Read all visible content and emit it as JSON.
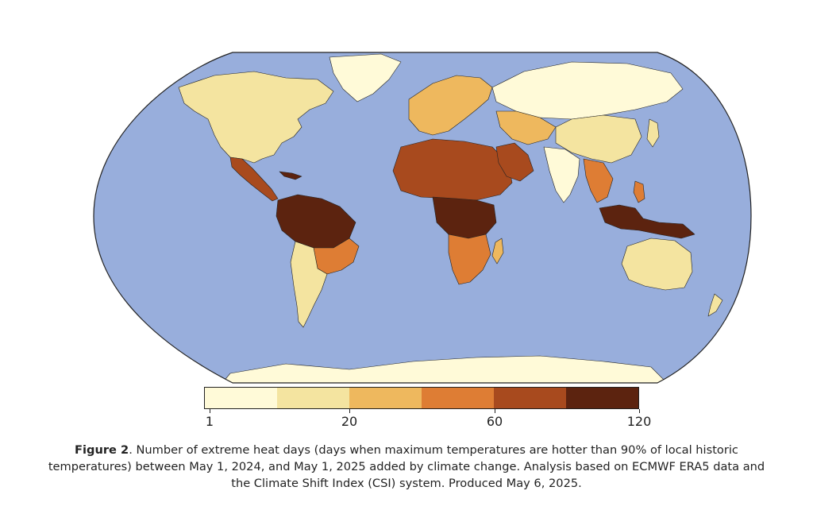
{
  "map": {
    "projection": "robinson",
    "ocean_color": "#98aedc",
    "land_base_color": "#fef7d6",
    "border_color": "#222222",
    "regions": [
      {
        "name": "north-america",
        "heat_level": 1
      },
      {
        "name": "central-america",
        "heat_level": 4
      },
      {
        "name": "amazon",
        "heat_level": 5
      },
      {
        "name": "southern-south-america",
        "heat_level": 1
      },
      {
        "name": "sahara-sahel",
        "heat_level": 4
      },
      {
        "name": "central-africa",
        "heat_level": 5
      },
      {
        "name": "southern-africa",
        "heat_level": 3
      },
      {
        "name": "europe",
        "heat_level": 2
      },
      {
        "name": "arabian-peninsula",
        "heat_level": 4
      },
      {
        "name": "russia-north-asia",
        "heat_level": 0
      },
      {
        "name": "china",
        "heat_level": 1
      },
      {
        "name": "india",
        "heat_level": 0
      },
      {
        "name": "southeast-asia",
        "heat_level": 3
      },
      {
        "name": "maritime-continent",
        "heat_level": 5
      },
      {
        "name": "australia",
        "heat_level": 1
      },
      {
        "name": "antarctica",
        "heat_level": 0
      },
      {
        "name": "greenland",
        "heat_level": 0
      }
    ]
  },
  "colorbar": {
    "colors": [
      "#fffad8",
      "#f4e4a0",
      "#eeb85e",
      "#de7d34",
      "#a84a1e",
      "#5c230f"
    ],
    "tick_labels": [
      "1",
      "20",
      "60",
      "120"
    ]
  },
  "caption": {
    "label": "Figure 2",
    "text": ". Number of extreme heat days (days when maximum temperatures are hotter than 90% of local historic temperatures) between May 1, 2024, and May 1, 2025 added by climate change. Analysis based on ECMWF ERA5 data and the Climate Shift Index (CSI) system. Produced May 6, 2025."
  }
}
